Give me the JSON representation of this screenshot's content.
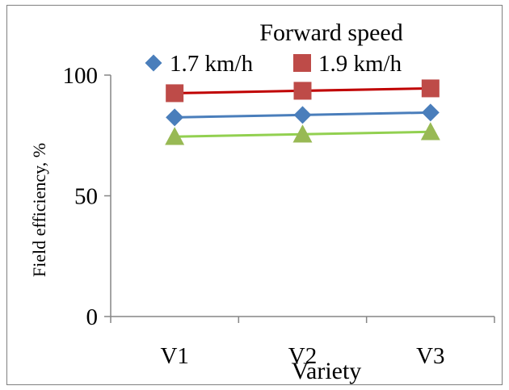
{
  "chart_data": {
    "type": "line",
    "legend_title": "Forward speed",
    "xlabel": "Variety",
    "ylabel": "Field efficiency, %",
    "categories": [
      "V1",
      "V2",
      "V3"
    ],
    "ylim": [
      0,
      100
    ],
    "yticks": [
      0,
      50,
      100
    ],
    "grid": false,
    "legend_position": "top",
    "series": [
      {
        "name": "1.7 km/h",
        "values": [
          82.5,
          83.5,
          84.5
        ],
        "color": "#4a7ebb",
        "marker": "diamond",
        "legend": true
      },
      {
        "name": "1.9 km/h",
        "values": [
          92.5,
          93.5,
          94.5
        ],
        "color": "#be4b48",
        "line_color": "#c00000",
        "marker": "square",
        "legend": true
      },
      {
        "values": [
          74.5,
          75.5,
          76.5
        ],
        "color": "#98b954",
        "line_color": "#92d050",
        "marker": "triangle",
        "legend": false
      }
    ]
  }
}
